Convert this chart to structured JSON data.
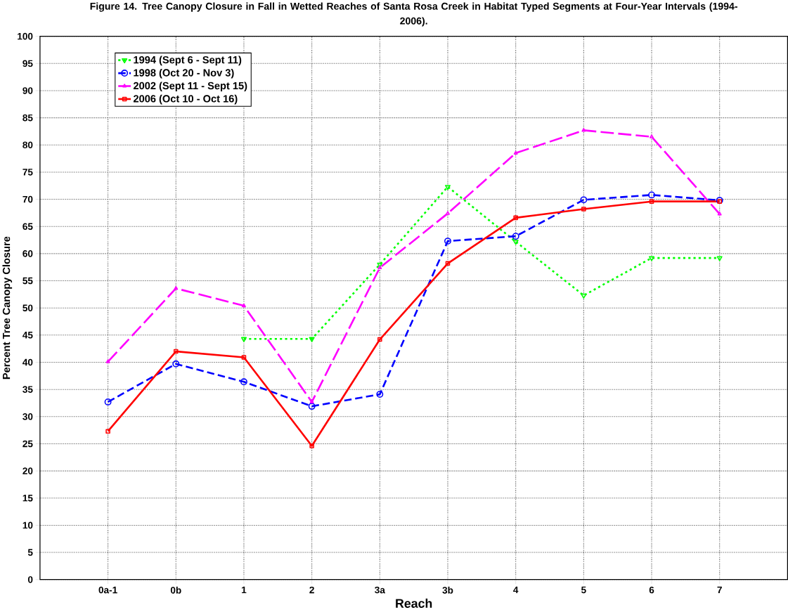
{
  "chart_data": {
    "type": "line",
    "title": "Figure 14. Tree Canopy Closure in Fall in Wetted Reaches of Santa Rosa Creek in Habitat Typed Segments at Four-Year Intervals (1994- 2006).",
    "xlabel": "Reach",
    "ylabel": "Percent Tree Canopy Closure",
    "categories": [
      "0a-1",
      "0b",
      "1",
      "2",
      "3a",
      "3b",
      "4",
      "5",
      "6",
      "7"
    ],
    "series": [
      {
        "name": "1994 (Sept 6  - Sept 11)",
        "color": "#00ff00",
        "marker": "triangle",
        "line_style": "dotted",
        "values": [
          null,
          null,
          44.3,
          44.3,
          58,
          72.3,
          62.2,
          52.3,
          59.2,
          59.2
        ]
      },
      {
        "name": "1998 (Oct 20 - Nov 3)",
        "color": "#0000ff",
        "marker": "circle",
        "line_style": "dashed",
        "values": [
          32.7,
          39.7,
          36.4,
          31.9,
          34.1,
          62.3,
          63.2,
          69.9,
          70.8,
          69.8
        ]
      },
      {
        "name": "2002 (Sept 11 - Sept 15)",
        "color": "#ff00ff",
        "marker": "triangle",
        "line_style": "dashed",
        "values": [
          40.1,
          53.6,
          50.4,
          32.7,
          57.4,
          67.4,
          78.5,
          82.7,
          81.5,
          67.3
        ]
      },
      {
        "name": "2006 (Oct 10 - Oct 16)",
        "color": "#ff0000",
        "marker": "square",
        "line_style": "solid",
        "values": [
          27.3,
          42.0,
          40.9,
          24.6,
          44.2,
          58.2,
          66.6,
          68.2,
          69.6,
          69.6
        ]
      }
    ],
    "ylim": [
      0,
      100
    ],
    "yticks": [
      0,
      5,
      10,
      15,
      20,
      25,
      30,
      35,
      40,
      45,
      50,
      55,
      60,
      65,
      70,
      75,
      80,
      85,
      90,
      95,
      100
    ],
    "grid": true,
    "legend": "top left"
  }
}
